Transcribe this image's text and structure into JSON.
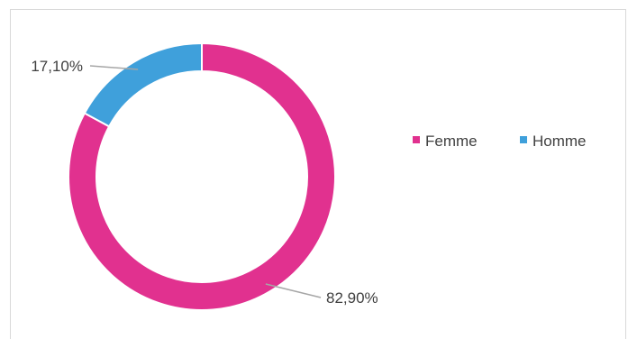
{
  "chart_data": {
    "type": "donut",
    "title": "",
    "categories": [
      "Femme",
      "Homme"
    ],
    "values": [
      82.9,
      17.1
    ],
    "data_labels": [
      "82,90%",
      "17,10%"
    ],
    "colors": [
      "#e1318f",
      "#3fa0db"
    ],
    "legend": {
      "placement": "right",
      "entries": [
        "Femme",
        "Homme"
      ]
    }
  }
}
